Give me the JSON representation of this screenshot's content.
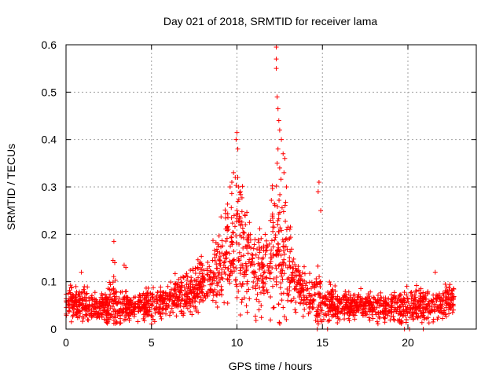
{
  "chart_data": {
    "type": "scatter",
    "title": "Day 021 of 2018, SRMTID for receiver lama",
    "xlabel": "GPS time / hours",
    "ylabel": "SRMTID / TECUs",
    "xlim": [
      0,
      24
    ],
    "ylim": [
      0,
      0.6
    ],
    "x_ticks": [
      0,
      5,
      10,
      15,
      20
    ],
    "y_ticks": [
      0,
      0.1,
      0.2,
      0.3,
      0.4,
      0.5,
      0.6
    ],
    "x_tick_labels": [
      "0",
      "5",
      "10",
      "15",
      "20"
    ],
    "y_tick_labels": [
      "0",
      "0.1",
      "0.2",
      "0.3",
      "0.4",
      "0.5",
      "0.6"
    ],
    "grid": true,
    "marker": "+",
    "series_color": "#ff0000",
    "baseline_points": [
      {
        "x": 14.7,
        "y": 0
      },
      {
        "x": 15.3,
        "y": 0
      },
      {
        "x": 19.8,
        "y": 0
      },
      {
        "x": 20.1,
        "y": 0
      },
      {
        "x": 20.9,
        "y": 0
      }
    ],
    "envelope_hours": [
      0,
      1,
      2,
      2.8,
      3.5,
      4,
      5,
      6,
      7,
      8,
      8.5,
      9,
      9.5,
      10,
      10.5,
      11,
      11.5,
      12,
      12.5,
      13,
      13.5,
      14,
      14.5,
      14.8,
      15,
      15.5,
      16,
      17,
      18,
      19,
      20,
      21,
      22,
      22.7
    ],
    "envelope_center": [
      0.055,
      0.05,
      0.045,
      0.05,
      0.048,
      0.045,
      0.05,
      0.06,
      0.075,
      0.095,
      0.11,
      0.14,
      0.17,
      0.2,
      0.16,
      0.13,
      0.11,
      0.16,
      0.17,
      0.13,
      0.1,
      0.075,
      0.065,
      0.07,
      0.06,
      0.055,
      0.05,
      0.05,
      0.045,
      0.045,
      0.045,
      0.05,
      0.055,
      0.06
    ],
    "envelope_spread": [
      0.02,
      0.025,
      0.02,
      0.04,
      0.025,
      0.02,
      0.025,
      0.025,
      0.03,
      0.035,
      0.04,
      0.06,
      0.08,
      0.09,
      0.07,
      0.06,
      0.05,
      0.09,
      0.1,
      0.07,
      0.04,
      0.03,
      0.03,
      0.05,
      0.03,
      0.025,
      0.02,
      0.02,
      0.02,
      0.02,
      0.025,
      0.025,
      0.025,
      0.02
    ],
    "outliers": [
      {
        "x": 2.8,
        "y": 0.185
      },
      {
        "x": 2.75,
        "y": 0.145
      },
      {
        "x": 2.85,
        "y": 0.14
      },
      {
        "x": 3.4,
        "y": 0.135
      },
      {
        "x": 3.5,
        "y": 0.13
      },
      {
        "x": 9.8,
        "y": 0.33
      },
      {
        "x": 9.9,
        "y": 0.32
      },
      {
        "x": 10.0,
        "y": 0.415
      },
      {
        "x": 9.95,
        "y": 0.4
      },
      {
        "x": 10.05,
        "y": 0.38
      },
      {
        "x": 9.7,
        "y": 0.31
      },
      {
        "x": 9.6,
        "y": 0.3
      },
      {
        "x": 10.1,
        "y": 0.3
      },
      {
        "x": 10.2,
        "y": 0.29
      },
      {
        "x": 12.3,
        "y": 0.595
      },
      {
        "x": 12.3,
        "y": 0.57
      },
      {
        "x": 12.3,
        "y": 0.55
      },
      {
        "x": 12.35,
        "y": 0.49
      },
      {
        "x": 12.4,
        "y": 0.465
      },
      {
        "x": 12.45,
        "y": 0.44
      },
      {
        "x": 12.5,
        "y": 0.42
      },
      {
        "x": 12.4,
        "y": 0.38
      },
      {
        "x": 12.6,
        "y": 0.4
      },
      {
        "x": 12.7,
        "y": 0.37
      },
      {
        "x": 12.8,
        "y": 0.36
      },
      {
        "x": 12.75,
        "y": 0.33
      },
      {
        "x": 12.35,
        "y": 0.35
      },
      {
        "x": 12.5,
        "y": 0.34
      },
      {
        "x": 12.9,
        "y": 0.3
      },
      {
        "x": 14.8,
        "y": 0.31
      },
      {
        "x": 14.75,
        "y": 0.29
      },
      {
        "x": 14.9,
        "y": 0.25
      },
      {
        "x": 21.6,
        "y": 0.12
      },
      {
        "x": 0.9,
        "y": 0.12
      }
    ]
  }
}
